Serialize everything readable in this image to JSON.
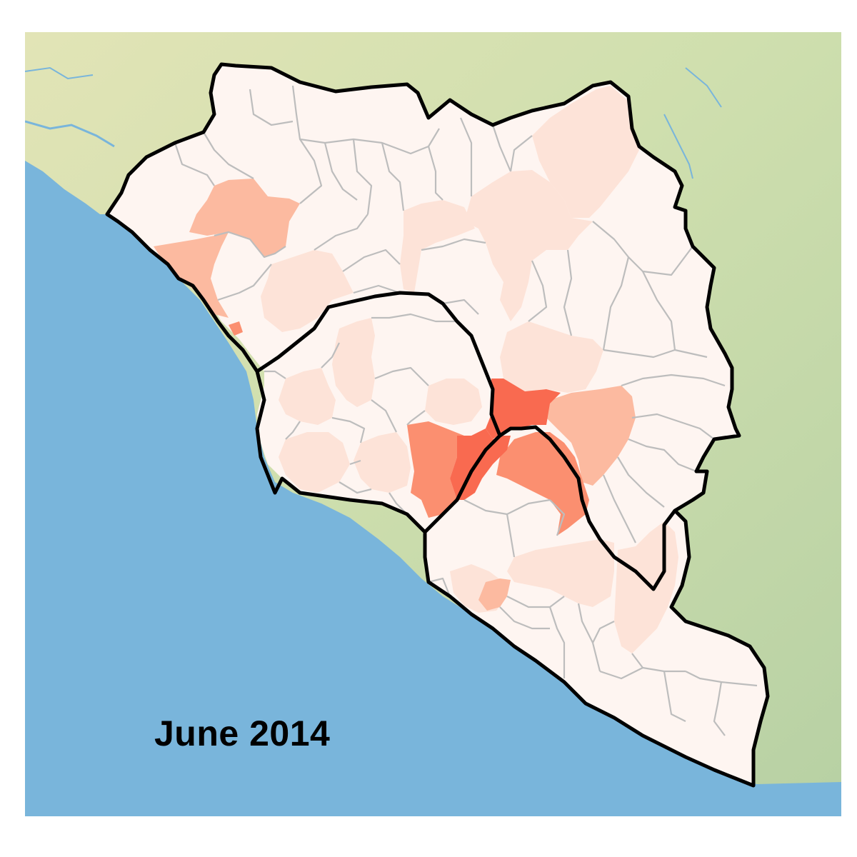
{
  "map": {
    "caption": "June 2014",
    "colors": {
      "ocean": "#79b5db",
      "land_north": "#dde2b2",
      "land_mid": "#c9dcae",
      "land_east": "#b9d2a6",
      "district_border": "#bdbdbd",
      "country_border": "#000000"
    },
    "legend_scale": [
      "#fef5f1",
      "#fde3d8",
      "#fcbaa0",
      "#fb8f70",
      "#f96a50"
    ]
  }
}
